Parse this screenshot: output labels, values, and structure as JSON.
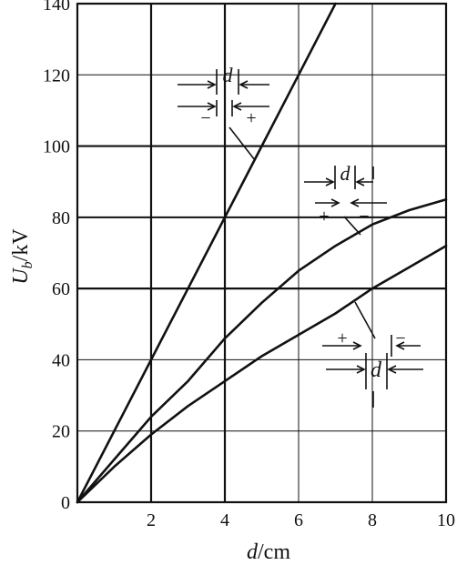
{
  "chart_data": {
    "type": "line",
    "xlabel": {
      "var": "d",
      "unit": "/cm"
    },
    "ylabel": {
      "var": "U",
      "sub": "b",
      "unit": "/kV"
    },
    "xlim": [
      0,
      10
    ],
    "ylim": [
      0,
      140
    ],
    "x_ticks": [
      "2",
      "4",
      "6",
      "8",
      "10"
    ],
    "y_ticks": [
      "0",
      "20",
      "40",
      "60",
      "80",
      "100",
      "120",
      "140"
    ],
    "grid": true,
    "series": [
      {
        "x": [
          0,
          2,
          4,
          5,
          6,
          7
        ],
        "y": [
          0,
          40,
          80,
          100,
          120,
          140
        ]
      },
      {
        "x": [
          0,
          1,
          2,
          3,
          4,
          5,
          6,
          7,
          8,
          9,
          10
        ],
        "y": [
          0,
          12,
          24,
          34,
          46,
          56,
          65,
          72,
          78,
          82,
          85
        ]
      },
      {
        "x": [
          0,
          1,
          2,
          3,
          4,
          5,
          6,
          7,
          8,
          9,
          10
        ],
        "y": [
          0,
          10,
          19,
          27,
          34,
          41,
          47,
          53,
          60,
          66,
          72
        ]
      }
    ],
    "annotations": [
      {
        "d": "d",
        "left_sign": "−",
        "right_sign": "+"
      },
      {
        "d": "d",
        "left_sign": "+",
        "right_sign": "−"
      },
      {
        "d": "d",
        "left_sign": "+",
        "right_sign": "−"
      }
    ]
  }
}
